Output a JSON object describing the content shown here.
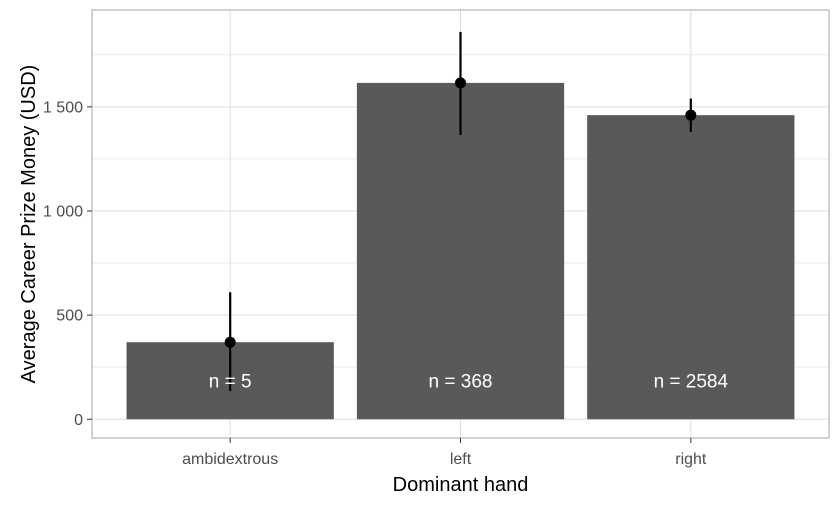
{
  "chart_data": {
    "type": "bar",
    "title": "",
    "xlabel": "Dominant hand",
    "ylabel": "Average Career Prize Money (USD)",
    "categories": [
      "ambidextrous",
      "left",
      "right"
    ],
    "values": [
      370,
      1615,
      1460
    ],
    "error_low": [
      135,
      1365,
      1380
    ],
    "error_high": [
      610,
      1860,
      1540
    ],
    "bar_labels": [
      "n = 5",
      "n = 368",
      "n = 2584"
    ],
    "ylim": [
      -90,
      1965
    ],
    "yticks": [
      0,
      500,
      1000,
      1500
    ],
    "ytick_labels": [
      "0",
      "500",
      "1 000",
      "1 500"
    ],
    "grid": true,
    "legend": "none",
    "colors": {
      "bar": "#595959",
      "point": "#000000",
      "grid_major": "#dedede",
      "grid_minor": "#ececec",
      "panel_border": "#b3b3b3",
      "tick_text": "#4d4d4d",
      "bar_label_text": "#ffffff"
    }
  }
}
